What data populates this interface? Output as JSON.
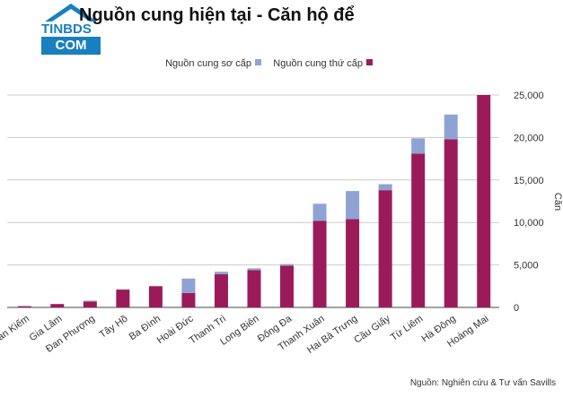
{
  "title": "Nguồn cung hiện tại - Căn hộ để",
  "logo": {
    "line1": "TINBDS",
    "line2": "COM"
  },
  "source": "Nguồn: Nghiên cứu & Tư vấn Savills",
  "colors": {
    "primary": "#9b1b5a",
    "secondary": "#8ea3d3",
    "axis": "#444444",
    "grid": "#cccccc"
  },
  "chart_data": {
    "type": "bar",
    "stacked": true,
    "categories": [
      "Hoàn Kiếm",
      "Gia Lâm",
      "Đan Phượng",
      "Tây Hồ",
      "Ba Đình",
      "Hoài Đức",
      "Thanh Trì",
      "Long Biên",
      "Đống Đa",
      "Thanh Xuân",
      "Hai Bà Trưng",
      "Cầu Giấy",
      "Từ Liêm",
      "Hà Đông",
      "Hoàng Mai"
    ],
    "series": [
      {
        "name": "Nguồn cung thứ cấp",
        "color": "#9b1b5a",
        "values": [
          150,
          400,
          700,
          2100,
          2500,
          1700,
          3900,
          4400,
          4900,
          10200,
          10400,
          13800,
          18100,
          19800,
          25000
        ]
      },
      {
        "name": "Nguồn cung sơ cấp",
        "color": "#8ea3d3",
        "values": [
          0,
          0,
          100,
          0,
          0,
          1700,
          300,
          200,
          200,
          2000,
          3300,
          700,
          1800,
          2900,
          0
        ]
      }
    ],
    "ylabel": "Căn",
    "ylim": [
      0,
      25000
    ],
    "yticks": [
      "0",
      "5,000",
      "10,000",
      "15,000",
      "20,000",
      "25,000"
    ],
    "legend": "top",
    "grid": true
  }
}
